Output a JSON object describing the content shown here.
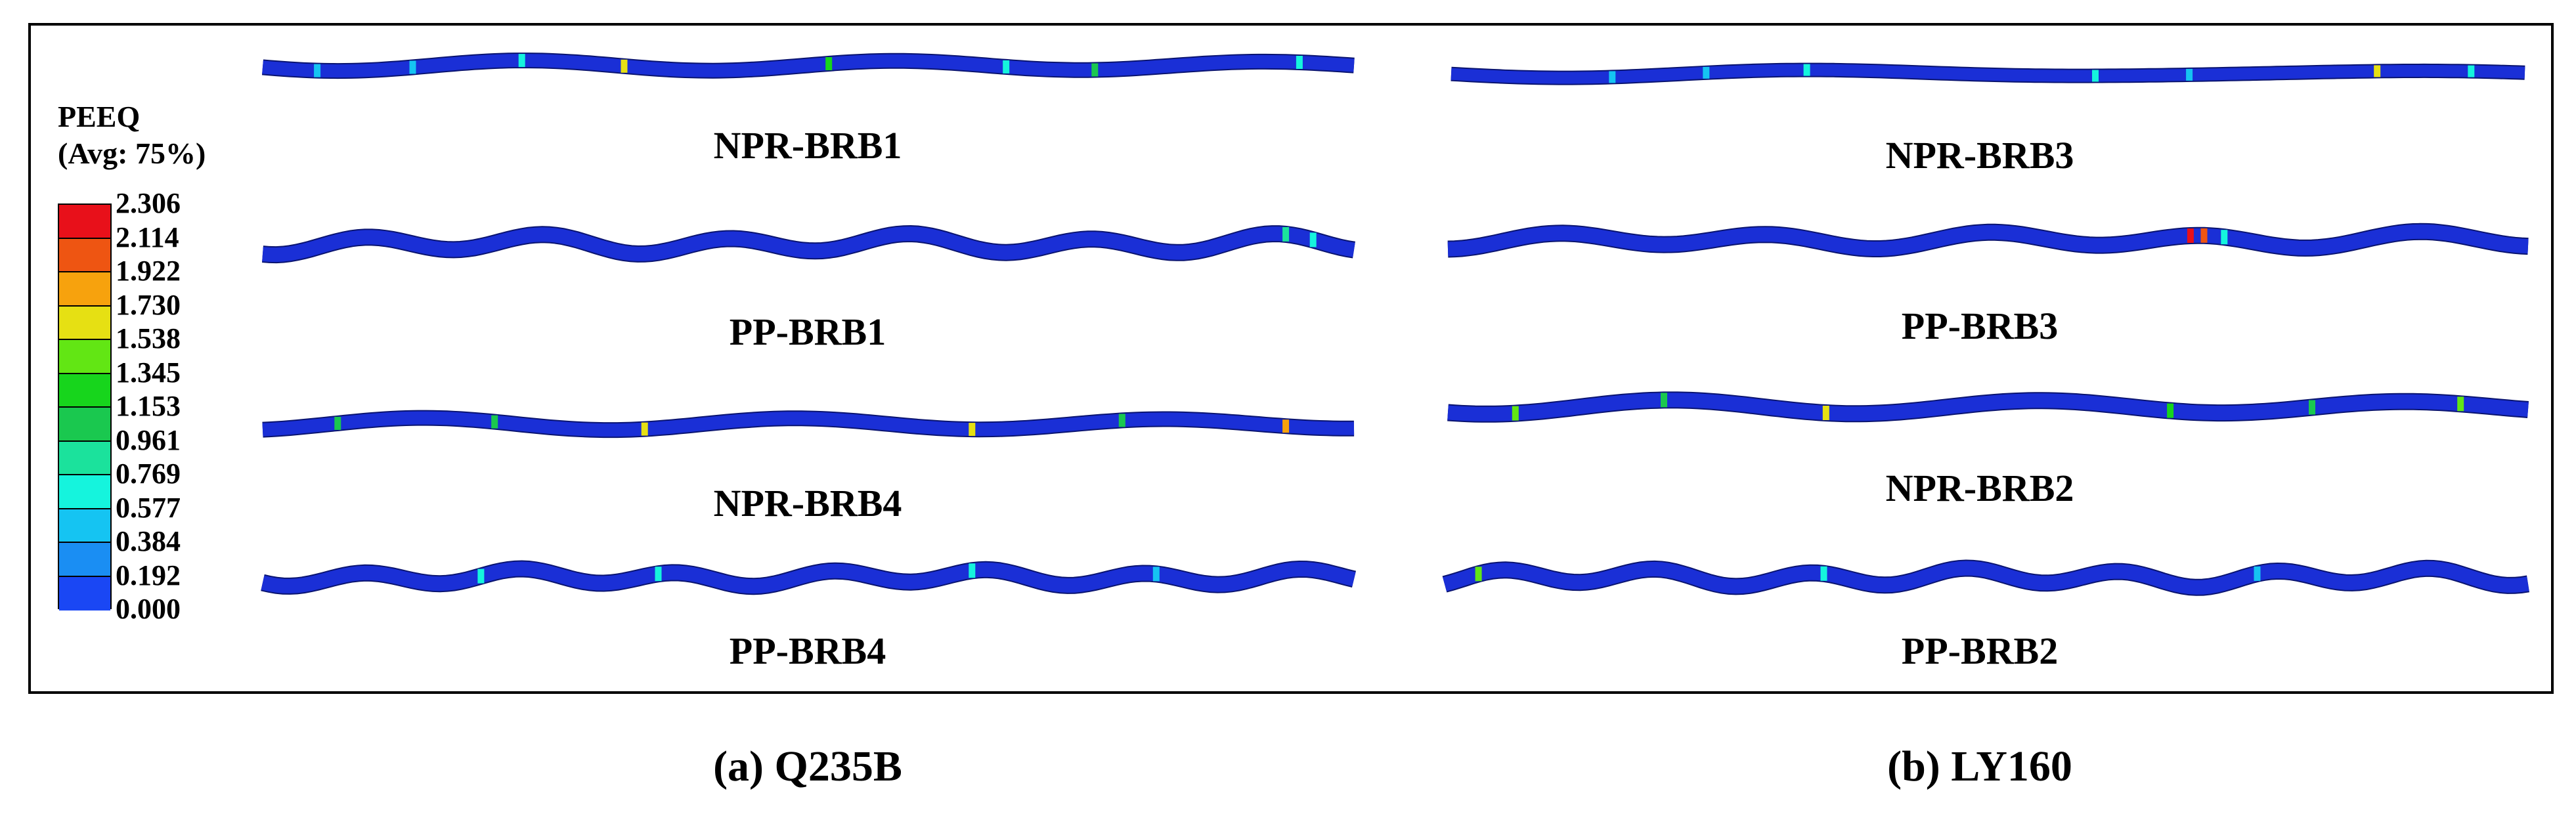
{
  "legend": {
    "title_line1": "PEEQ",
    "title_line2": "(Avg: 75%)",
    "ticks": [
      "2.306",
      "2.114",
      "1.922",
      "1.730",
      "1.538",
      "1.345",
      "1.153",
      "0.961",
      "0.769",
      "0.577",
      "0.384",
      "0.192",
      "0.000"
    ],
    "colors": [
      "#e8101a",
      "#ee5512",
      "#f7a20d",
      "#e6e013",
      "#62e614",
      "#17d51c",
      "#1ac84f",
      "#1be29c",
      "#15f4dd",
      "#15c4f2",
      "#1a8ef3",
      "#1a47f4"
    ]
  },
  "left_panel": {
    "caption": "(a) Q235B",
    "specimens": [
      {
        "label": "NPR-BRB1"
      },
      {
        "label": "PP-BRB1"
      },
      {
        "label": "NPR-BRB4"
      },
      {
        "label": "PP-BRB4"
      }
    ]
  },
  "right_panel": {
    "caption": "(b) LY160",
    "specimens": [
      {
        "label": "NPR-BRB3"
      },
      {
        "label": "PP-BRB3"
      },
      {
        "label": "NPR-BRB2"
      },
      {
        "label": "PP-BRB2"
      }
    ]
  },
  "colors": {
    "core_base": "#1a2fd6",
    "core_edge": "#0a1470",
    "frame": "#000000"
  }
}
